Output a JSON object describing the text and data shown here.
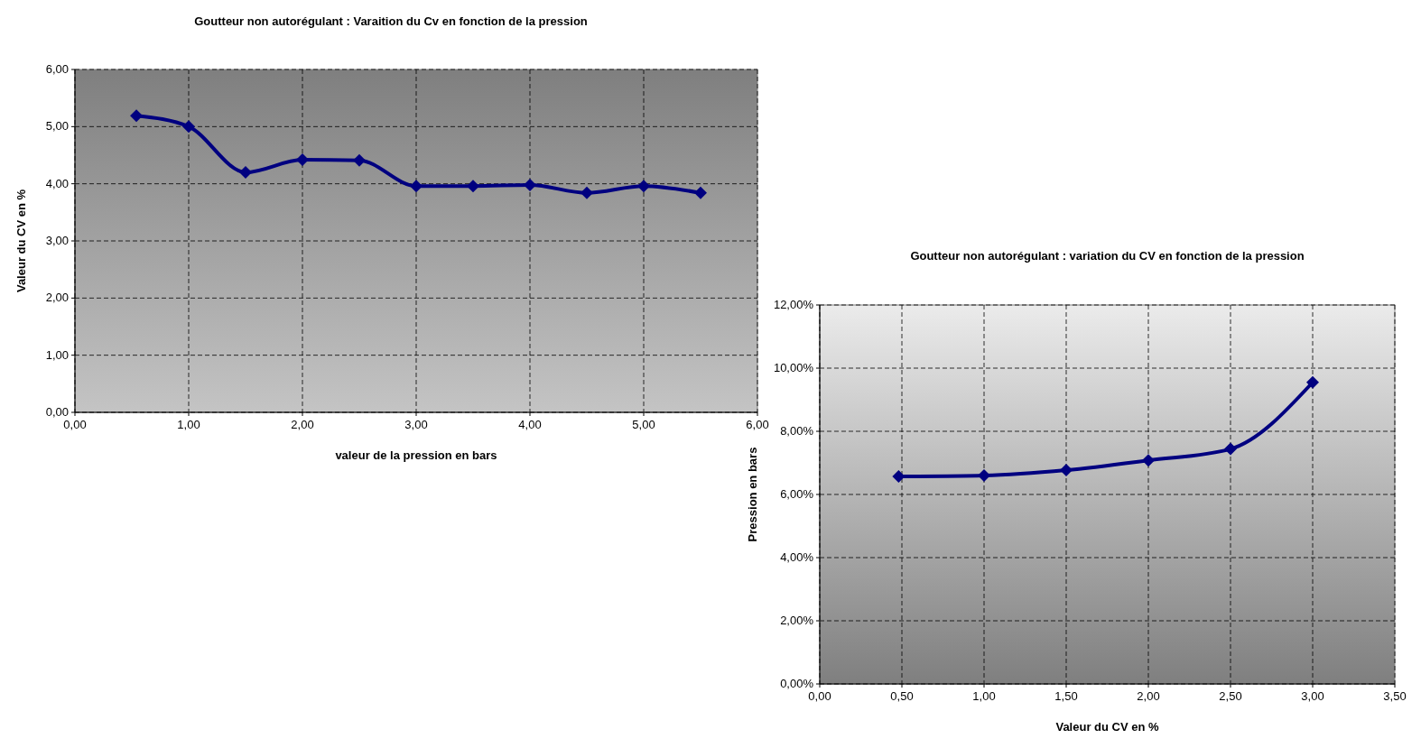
{
  "chart_data": [
    {
      "type": "line",
      "title": "Goutteur non autorégulant : Varaition du Cv en fonction de la pression",
      "xlabel": "valeur de la pression en bars",
      "ylabel": "Valeur du CV en %",
      "x": [
        0.54,
        1.0,
        1.5,
        2.0,
        2.5,
        3.0,
        3.5,
        4.0,
        4.5,
        5.0,
        5.5
      ],
      "series": [
        {
          "color": "#000080",
          "values": [
            5.19,
            5.0,
            4.2,
            4.42,
            4.41,
            3.96,
            3.96,
            3.98,
            3.84,
            3.96,
            3.84
          ]
        }
      ],
      "xlim": [
        0,
        6
      ],
      "xticks": [
        {
          "value": 0,
          "label": "0,00"
        },
        {
          "value": 1,
          "label": "1,00"
        },
        {
          "value": 2,
          "label": "2,00"
        },
        {
          "value": 3,
          "label": "3,00"
        },
        {
          "value": 4,
          "label": "4,00"
        },
        {
          "value": 5,
          "label": "5,00"
        },
        {
          "value": 6,
          "label": "6,00"
        }
      ],
      "ylim": [
        0,
        6
      ],
      "yticks": [
        {
          "value": 0,
          "label": "0,00"
        },
        {
          "value": 1,
          "label": "1,00"
        },
        {
          "value": 2,
          "label": "2,00"
        },
        {
          "value": 3,
          "label": "3,00"
        },
        {
          "value": 4,
          "label": "4,00"
        },
        {
          "value": 5,
          "label": "5,00"
        },
        {
          "value": 6,
          "label": "6,00"
        }
      ],
      "grid": true,
      "marker": "diamond",
      "line_style": "solid"
    },
    {
      "type": "line",
      "title": "Goutteur non autorégulant : variation du CV en fonction de la pression",
      "xlabel": "Valeur du CV en %",
      "ylabel": "Pression en bars",
      "x": [
        0.48,
        1.0,
        1.5,
        2.0,
        2.5,
        3.0
      ],
      "series": [
        {
          "color": "#000080",
          "values": [
            6.57,
            6.6,
            6.77,
            7.08,
            7.44,
            9.55
          ]
        }
      ],
      "xlim": [
        0,
        3.5
      ],
      "xticks": [
        {
          "value": 0,
          "label": "0,00"
        },
        {
          "value": 0.5,
          "label": "0,50"
        },
        {
          "value": 1,
          "label": "1,00"
        },
        {
          "value": 1.5,
          "label": "1,50"
        },
        {
          "value": 2,
          "label": "2,00"
        },
        {
          "value": 2.5,
          "label": "2,50"
        },
        {
          "value": 3,
          "label": "3,00"
        },
        {
          "value": 3.5,
          "label": "3,50"
        }
      ],
      "ylim": [
        0,
        12
      ],
      "yticks": [
        {
          "value": 0,
          "label": "0,00%"
        },
        {
          "value": 2,
          "label": "2,00%"
        },
        {
          "value": 4,
          "label": "4,00%"
        },
        {
          "value": 6,
          "label": "6,00%"
        },
        {
          "value": 8,
          "label": "8,00%"
        },
        {
          "value": 10,
          "label": "10,00%"
        },
        {
          "value": 12,
          "label": "12,00%"
        }
      ],
      "grid": true,
      "marker": "diamond",
      "line_style": "solid"
    }
  ]
}
